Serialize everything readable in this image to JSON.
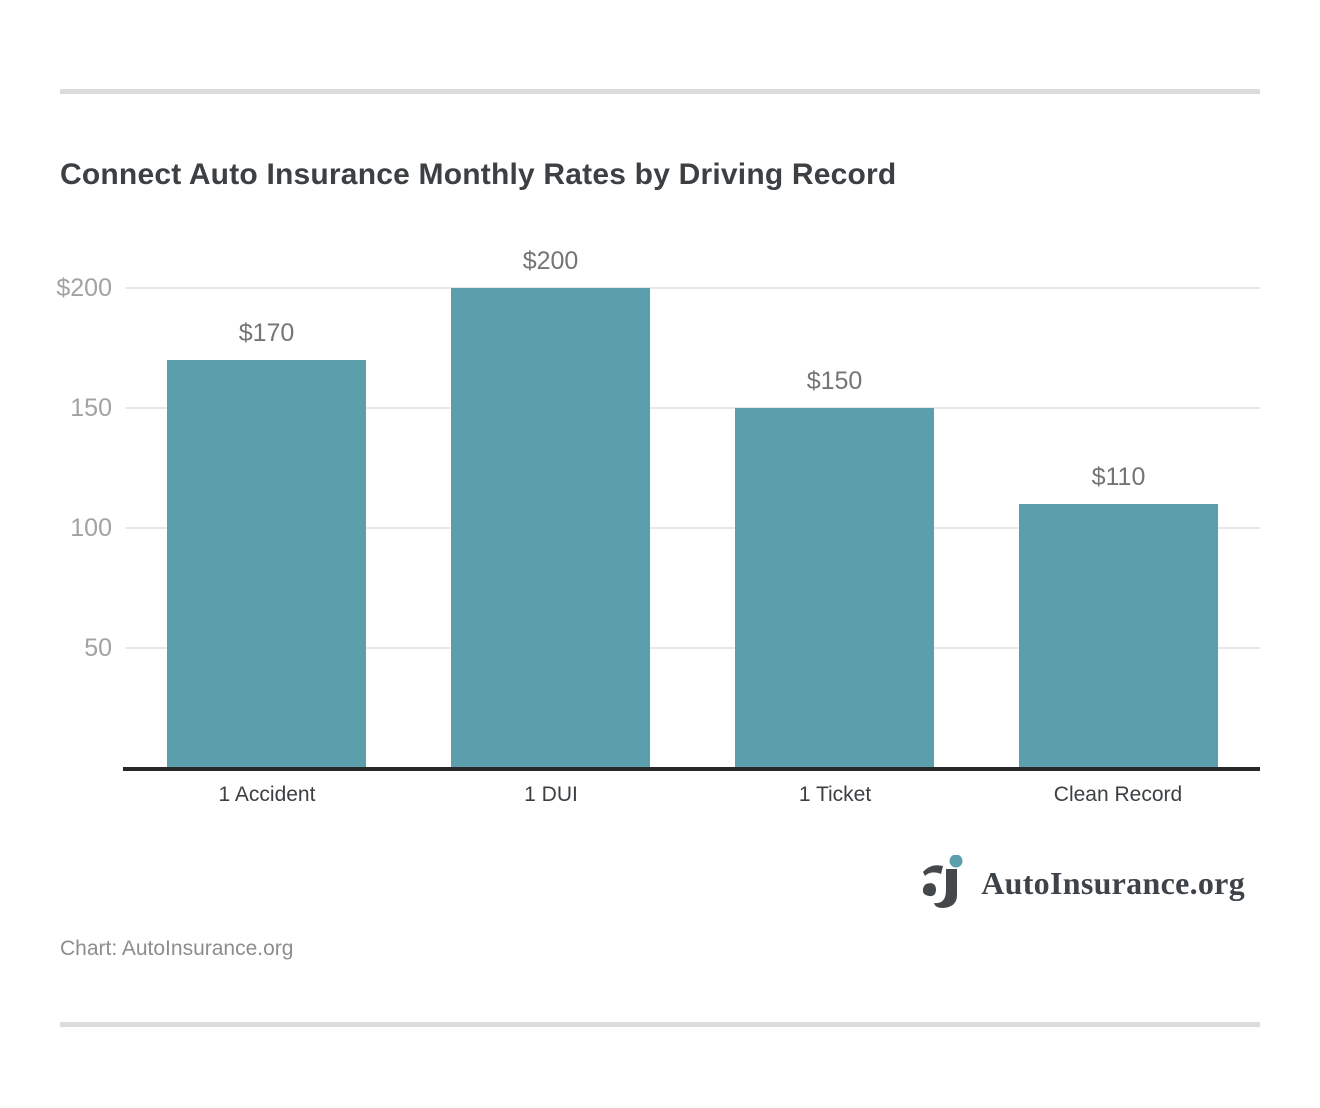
{
  "page": {
    "title": "Connect Auto Insurance Monthly Rates by Driving Record",
    "footer_credit": "Chart: AutoInsurance.org",
    "brand": {
      "name": "AutoInsurance.org",
      "icon": "autoinsurance-ai-monogram-icon",
      "text_color": "#3d4349",
      "mark_dark_color": "#45484b",
      "mark_dot_color": "#5b9fac"
    }
  },
  "chart_data": {
    "type": "bar",
    "title": "Connect Auto Insurance Monthly Rates by Driving Record",
    "categories": [
      "1 Accident",
      "1 DUI",
      "1 Ticket",
      "Clean Record"
    ],
    "values": [
      170,
      200,
      150,
      110
    ],
    "value_labels": [
      "$170",
      "$200",
      "$150",
      "$110"
    ],
    "y_ticks": [
      {
        "value": 50,
        "label": "50"
      },
      {
        "value": 100,
        "label": "100"
      },
      {
        "value": 150,
        "label": "150"
      },
      {
        "value": 200,
        "label": "$200"
      }
    ],
    "ylim": [
      0,
      200
    ],
    "xlabel": "",
    "ylabel": "",
    "bar_color": "#5b9fac",
    "grid": "horizontal-only",
    "legend": "none",
    "source": "Chart: AutoInsurance.org"
  }
}
